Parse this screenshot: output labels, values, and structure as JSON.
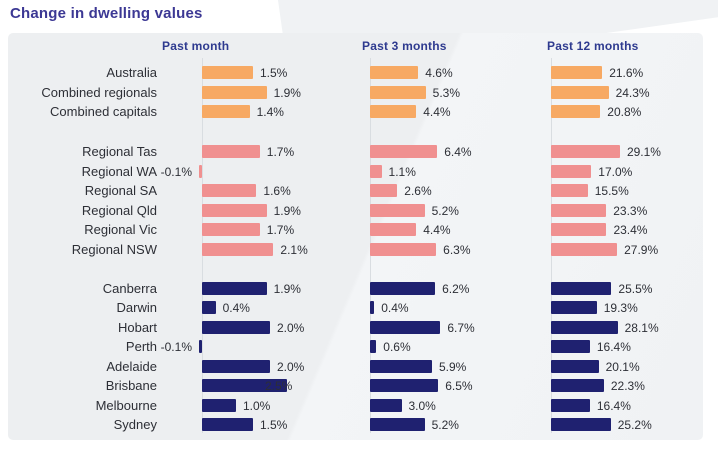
{
  "title": "Change in dwelling values",
  "columns": [
    {
      "label": "Past month"
    },
    {
      "label": "Past 3 months"
    },
    {
      "label": "Past 12 months"
    }
  ],
  "colors": {
    "national_bar": "#F7A963",
    "regional_bar": "#F09090",
    "capital_bar": "#1F2170",
    "title_text": "#3C3894",
    "header_text": "#2E3A8F",
    "body_text": "#2D2F36",
    "card_background": "#EFF1F3",
    "axis_line": "#D9DDE1"
  },
  "groups": [
    {
      "name": "national",
      "color": "#F7A963",
      "rows": [
        {
          "label": "Australia",
          "values": [
            1.5,
            4.6,
            21.6
          ]
        },
        {
          "label": "Combined regionals",
          "values": [
            1.9,
            5.3,
            24.3
          ]
        },
        {
          "label": "Combined capitals",
          "values": [
            1.4,
            4.4,
            20.8
          ]
        }
      ]
    },
    {
      "name": "regionals",
      "color": "#F09090",
      "rows": [
        {
          "label": "Regional Tas",
          "values": [
            1.7,
            6.4,
            29.1
          ]
        },
        {
          "label": "Regional WA",
          "values": [
            -0.1,
            1.1,
            17.0
          ]
        },
        {
          "label": "Regional SA",
          "values": [
            1.6,
            2.6,
            15.5
          ]
        },
        {
          "label": "Regional Qld",
          "values": [
            1.9,
            5.2,
            23.3
          ]
        },
        {
          "label": "Regional Vic",
          "values": [
            1.7,
            4.4,
            23.4
          ]
        },
        {
          "label": "Regional NSW",
          "values": [
            2.1,
            6.3,
            27.9
          ]
        }
      ]
    },
    {
      "name": "capitals",
      "color": "#1F2170",
      "rows": [
        {
          "label": "Canberra",
          "values": [
            1.9,
            6.2,
            25.5
          ]
        },
        {
          "label": "Darwin",
          "values": [
            0.4,
            0.4,
            19.3
          ]
        },
        {
          "label": "Hobart",
          "values": [
            2.0,
            6.7,
            28.1
          ]
        },
        {
          "label": "Perth",
          "values": [
            -0.1,
            0.6,
            16.4
          ]
        },
        {
          "label": "Adelaide",
          "values": [
            2.0,
            5.9,
            20.1
          ]
        },
        {
          "label": "Brisbane",
          "values": [
            2.5,
            6.5,
            22.3
          ],
          "label_overlap_col": 0
        },
        {
          "label": "Melbourne",
          "values": [
            1.0,
            3.0,
            16.4
          ]
        },
        {
          "label": "Sydney",
          "values": [
            1.5,
            5.2,
            25.2
          ]
        }
      ]
    }
  ],
  "chart_data": {
    "type": "bar",
    "orientation": "horizontal",
    "title": "Change in dwelling values",
    "categories": [
      "Australia",
      "Combined regionals",
      "Combined capitals",
      "Regional Tas",
      "Regional WA",
      "Regional SA",
      "Regional Qld",
      "Regional Vic",
      "Regional NSW",
      "Canberra",
      "Darwin",
      "Hobart",
      "Perth",
      "Adelaide",
      "Brisbane",
      "Melbourne",
      "Sydney"
    ],
    "series": [
      {
        "name": "Past month",
        "unit": "%",
        "values": [
          1.5,
          1.9,
          1.4,
          1.7,
          -0.1,
          1.6,
          1.9,
          1.7,
          2.1,
          1.9,
          0.4,
          2.0,
          -0.1,
          2.0,
          2.5,
          1.0,
          1.5
        ]
      },
      {
        "name": "Past 3 months",
        "unit": "%",
        "values": [
          4.6,
          5.3,
          4.4,
          6.4,
          1.1,
          2.6,
          5.2,
          4.4,
          6.3,
          6.2,
          0.4,
          6.7,
          0.6,
          5.9,
          6.5,
          3.0,
          5.2
        ]
      },
      {
        "name": "Past 12 months",
        "unit": "%",
        "values": [
          21.6,
          24.3,
          20.8,
          29.1,
          17.0,
          15.5,
          23.3,
          23.4,
          27.9,
          25.5,
          19.3,
          28.1,
          16.4,
          20.1,
          22.3,
          16.4,
          25.2
        ]
      }
    ],
    "group_membership": {
      "national": [
        "Australia",
        "Combined regionals",
        "Combined capitals"
      ],
      "regionals": [
        "Regional Tas",
        "Regional WA",
        "Regional SA",
        "Regional Qld",
        "Regional Vic",
        "Regional NSW"
      ],
      "capitals": [
        "Canberra",
        "Darwin",
        "Hobart",
        "Perth",
        "Adelaide",
        "Brisbane",
        "Melbourne",
        "Sydney"
      ]
    },
    "legend": "none",
    "grid": "off",
    "value_labels": "end_of_bar",
    "axis_scaling": "independent_per_column"
  }
}
